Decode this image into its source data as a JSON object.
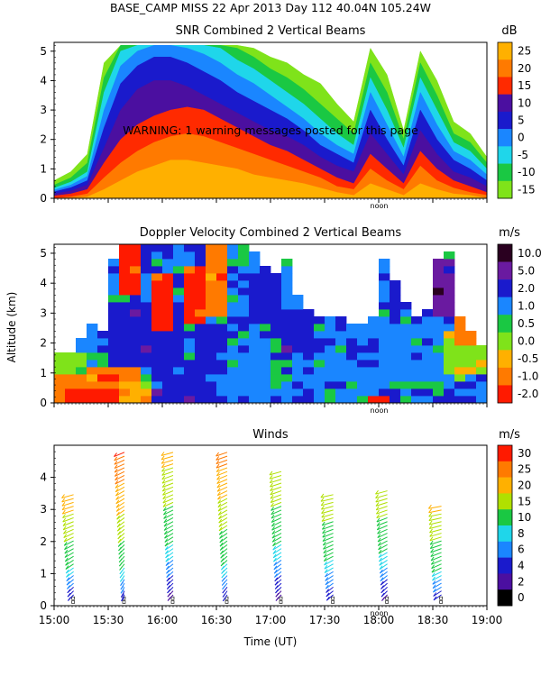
{
  "header": {
    "title": "BASE_CAMP MISS  22 Apr 2013 Day 112 40.04N 105.24W"
  },
  "chart_data": [
    {
      "type": "heatmap",
      "title": "SNR Combined 2 Vertical Beams",
      "unit": "dB",
      "ylim": [
        0,
        5.3
      ],
      "yticks": [
        0,
        1,
        2,
        3,
        4,
        5
      ],
      "xlim": [
        15.0,
        19.0
      ],
      "marker_label": "noon",
      "annotation": "WARNING: 1 warning messages posted for this page",
      "colorbar": {
        "labels": [
          "25",
          "20",
          "15",
          "10",
          "5",
          "0",
          "-5",
          "-10",
          "-15"
        ],
        "colors": [
          "#ffb000",
          "#ff7a00",
          "#ff2a00",
          "#4b0fa0",
          "#1a1acc",
          "#1a86ff",
          "#1fd6ea",
          "#1ac843",
          "#7fe31a"
        ]
      },
      "bands": [
        {
          "color": "#7fe31a",
          "top": [
            0.6,
            0.9,
            1.5,
            4.6,
            5.2,
            5.2,
            5.2,
            5.2,
            5.2,
            5.2,
            5.2,
            5.2,
            5.1,
            4.8,
            4.6,
            4.2,
            3.9,
            3.2,
            2.6,
            5.1,
            4.2,
            2.3,
            5.0,
            4.0,
            2.6,
            2.2,
            1.4
          ]
        },
        {
          "color": "#1ac843",
          "top": [
            0.45,
            0.7,
            1.2,
            4.1,
            5.2,
            5.2,
            5.2,
            5.2,
            5.2,
            5.2,
            5.2,
            5.1,
            4.8,
            4.4,
            4.1,
            3.7,
            3.2,
            2.7,
            2.2,
            4.6,
            3.6,
            2.0,
            4.6,
            3.5,
            2.2,
            1.9,
            1.2
          ]
        },
        {
          "color": "#1fd6ea",
          "top": [
            0.35,
            0.55,
            0.9,
            3.6,
            5.0,
            5.2,
            5.2,
            5.2,
            5.2,
            5.2,
            5.1,
            4.7,
            4.4,
            4.0,
            3.6,
            3.2,
            2.7,
            2.2,
            1.8,
            4.1,
            3.0,
            1.7,
            4.1,
            3.0,
            1.9,
            1.6,
            1.0
          ]
        },
        {
          "color": "#1a86ff",
          "top": [
            0.28,
            0.45,
            0.75,
            3.0,
            4.5,
            5.0,
            5.2,
            5.2,
            5.1,
            4.9,
            4.6,
            4.2,
            3.9,
            3.5,
            3.1,
            2.7,
            2.2,
            1.8,
            1.5,
            3.6,
            2.5,
            1.4,
            3.6,
            2.5,
            1.6,
            1.3,
            0.8
          ]
        },
        {
          "color": "#1a1acc",
          "top": [
            0.22,
            0.36,
            0.6,
            2.4,
            3.9,
            4.5,
            4.8,
            4.8,
            4.6,
            4.3,
            4.0,
            3.6,
            3.3,
            3.0,
            2.7,
            2.3,
            1.8,
            1.5,
            1.2,
            3.0,
            2.0,
            1.1,
            3.0,
            2.0,
            1.3,
            1.0,
            0.6
          ]
        },
        {
          "color": "#4b0fa0",
          "top": [
            0.15,
            0.25,
            0.45,
            1.7,
            3.0,
            3.7,
            4.0,
            4.0,
            3.8,
            3.5,
            3.2,
            2.9,
            2.6,
            2.3,
            2.1,
            1.8,
            1.4,
            1.1,
            0.9,
            2.2,
            1.5,
            0.8,
            2.3,
            1.5,
            0.9,
            0.7,
            0.4
          ]
        },
        {
          "color": "#ff2a00",
          "top": [
            0.08,
            0.15,
            0.3,
            1.2,
            2.0,
            2.5,
            2.8,
            3.0,
            3.1,
            3.0,
            2.7,
            2.4,
            2.1,
            1.8,
            1.6,
            1.3,
            1.0,
            0.7,
            0.5,
            1.5,
            1.0,
            0.5,
            1.6,
            1.0,
            0.6,
            0.4,
            0.2
          ]
        },
        {
          "color": "#ff7a00",
          "top": [
            0,
            0.05,
            0.15,
            0.7,
            1.2,
            1.6,
            1.9,
            2.1,
            2.2,
            2.1,
            1.9,
            1.7,
            1.5,
            1.3,
            1.1,
            0.9,
            0.7,
            0.4,
            0.3,
            1.0,
            0.6,
            0.3,
            1.1,
            0.6,
            0.35,
            0.2,
            0.1
          ]
        },
        {
          "color": "#ffb000",
          "top": [
            0,
            0,
            0.05,
            0.3,
            0.6,
            0.9,
            1.1,
            1.3,
            1.3,
            1.2,
            1.1,
            1.0,
            0.8,
            0.7,
            0.6,
            0.5,
            0.35,
            0.2,
            0.1,
            0.5,
            0.3,
            0.1,
            0.5,
            0.3,
            0.15,
            0.1,
            0
          ]
        }
      ]
    },
    {
      "type": "heatmap",
      "title": "Doppler Velocity Combined 2 Vertical Beams",
      "unit": "m/s",
      "ylabel": "Altitude (km)",
      "ylim": [
        0,
        5.3
      ],
      "yticks": [
        0,
        1,
        2,
        3,
        4,
        5
      ],
      "xlim": [
        15.0,
        19.0
      ],
      "marker_label": "noon",
      "colorbar": {
        "labels": [
          "10.0",
          "5.0",
          "2.0",
          "1.0",
          "0.5",
          "0.0",
          "-0.5",
          "-1.0",
          "-2.0"
        ],
        "colors": [
          "#2a0020",
          "#6a1aa0",
          "#1a1acc",
          "#1a86ff",
          "#1ac843",
          "#7fe31a",
          "#ffb000",
          "#ff7a00",
          "#ff1a00"
        ]
      },
      "cols": 40,
      "rows": 22,
      "top": [
        1.6,
        1.8,
        2.2,
        2.6,
        2.4,
        4.9,
        5.2,
        5.2,
        5.2,
        5.2,
        5.2,
        5.2,
        5.2,
        5.2,
        5.2,
        5.2,
        5.2,
        5.2,
        5.0,
        4.6,
        4.3,
        4.8,
        3.6,
        3.2,
        3.0,
        2.9,
        2.8,
        2.7,
        2.7,
        2.8,
        4.8,
        4.0,
        3.4,
        3.0,
        3.1,
        4.9,
        5.0,
        3.0,
        2.4,
        2.0
      ],
      "patches": [
        {
          "x0": 0,
          "x1": 8,
          "y0": 0,
          "y1": 1.3,
          "c": 7
        },
        {
          "x0": 1,
          "x1": 6,
          "y0": 0,
          "y1": 0.5,
          "c": 8
        },
        {
          "x0": 0,
          "x1": 3,
          "y0": 0.9,
          "y1": 1.8,
          "c": 5
        },
        {
          "x0": 6,
          "x1": 10,
          "y0": 0.1,
          "y1": 0.8,
          "c": 6
        },
        {
          "x0": 9,
          "x1": 15,
          "y0": 0,
          "y1": 0.9,
          "c": 2
        },
        {
          "x0": 5,
          "x1": 12,
          "y0": 1.2,
          "y1": 3.4,
          "c": 2
        },
        {
          "x0": 6,
          "x1": 8,
          "y0": 3.6,
          "y1": 5.2,
          "c": 8
        },
        {
          "x0": 9,
          "x1": 11,
          "y0": 2.4,
          "y1": 4.4,
          "c": 8
        },
        {
          "x0": 12,
          "x1": 14,
          "y0": 2.6,
          "y1": 4.6,
          "c": 8
        },
        {
          "x0": 14,
          "x1": 16,
          "y0": 3.0,
          "y1": 5.2,
          "c": 7
        },
        {
          "x0": 13,
          "x1": 16,
          "y0": 1.0,
          "y1": 2.6,
          "c": 2
        },
        {
          "x0": 16,
          "x1": 20,
          "y0": 0.3,
          "y1": 2.2,
          "c": 3
        },
        {
          "x0": 18,
          "x1": 21,
          "y0": 2.6,
          "y1": 4.4,
          "c": 2
        },
        {
          "x0": 21,
          "x1": 24,
          "y0": 1.8,
          "y1": 3.2,
          "c": 2
        },
        {
          "x0": 24,
          "x1": 30,
          "y0": 0,
          "y1": 1.6,
          "c": 3
        },
        {
          "x0": 30,
          "x1": 35,
          "y0": 0.8,
          "y1": 2.6,
          "c": 3
        },
        {
          "x0": 31,
          "x1": 33,
          "y0": 3.2,
          "y1": 4.6,
          "c": 2
        },
        {
          "x0": 35,
          "x1": 38,
          "y0": 2.8,
          "y1": 4.9,
          "c": 1
        },
        {
          "x0": 29,
          "x1": 31,
          "y0": 0,
          "y1": 0.3,
          "c": 8
        },
        {
          "x0": 36,
          "x1": 40,
          "y0": 1.0,
          "y1": 2.4,
          "c": 5
        },
        {
          "x0": 37,
          "x1": 40,
          "y0": 2.0,
          "y1": 3.0,
          "c": 7
        },
        {
          "x0": 22,
          "x1": 24,
          "y0": 3.6,
          "y1": 4.6,
          "c": 4
        }
      ]
    },
    {
      "type": "scatter",
      "title": "Winds",
      "unit": "m/s",
      "xlabel": "Time (UT)",
      "ylim": [
        0,
        5
      ],
      "yticks": [
        0,
        1,
        2,
        3,
        4
      ],
      "xlim": [
        15.0,
        19.0
      ],
      "xtick_labels": [
        "15:00",
        "15:30",
        "16:00",
        "16:30",
        "17:00",
        "17:30",
        "18:00",
        "18:30",
        "19:00"
      ],
      "marker_label": "noon",
      "colorbar": {
        "labels": [
          "30",
          "25",
          "20",
          "15",
          "10",
          "8",
          "6",
          "4",
          "2",
          "0"
        ],
        "colors": [
          "#ff1a00",
          "#ff7a00",
          "#ffb000",
          "#b0e000",
          "#1ac843",
          "#1fd6ea",
          "#1a86ff",
          "#1a1acc",
          "#4b0fa0",
          "#000000"
        ]
      },
      "profiles": [
        {
          "time": 15.18,
          "top": 3.5,
          "dir": 300,
          "maxspd": 22
        },
        {
          "time": 15.65,
          "top": 4.9,
          "dir": 310,
          "maxspd": 28
        },
        {
          "time": 16.1,
          "top": 4.9,
          "dir": 300,
          "maxspd": 20
        },
        {
          "time": 16.6,
          "top": 4.8,
          "dir": 305,
          "maxspd": 24
        },
        {
          "time": 17.1,
          "top": 4.3,
          "dir": 300,
          "maxspd": 18
        },
        {
          "time": 17.58,
          "top": 3.5,
          "dir": 295,
          "maxspd": 16
        },
        {
          "time": 18.08,
          "top": 3.6,
          "dir": 300,
          "maxspd": 17
        },
        {
          "time": 18.58,
          "top": 3.2,
          "dir": 290,
          "maxspd": 19
        }
      ]
    }
  ]
}
